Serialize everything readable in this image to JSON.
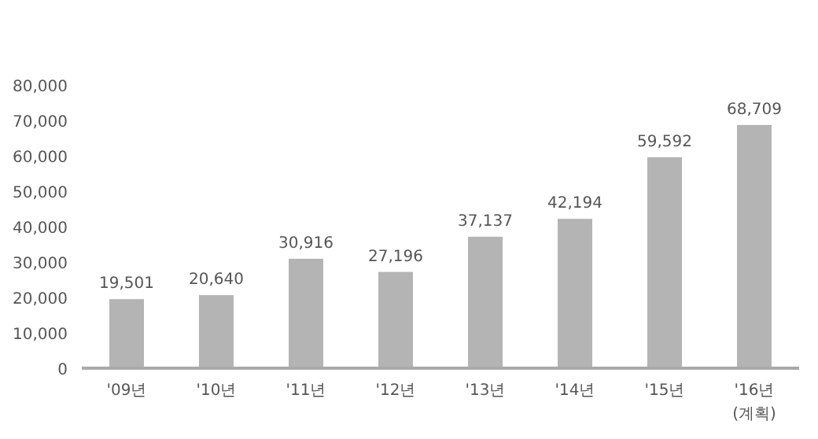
{
  "chart_data": {
    "type": "bar",
    "categories": [
      "'09년",
      "'10년",
      "'11년",
      "'12년",
      "'13년",
      "'14년",
      "'15년",
      "'16년\n(계획)"
    ],
    "values": [
      19501,
      20640,
      30916,
      27196,
      37137,
      42194,
      59592,
      68709
    ],
    "value_labels": [
      "19,501",
      "20,640",
      "30,916",
      "27,196",
      "37,137",
      "42,194",
      "59,592",
      "68,709"
    ],
    "color": "#b4b4b4",
    "ylim": [
      0,
      80000
    ],
    "yticks": [
      {
        "value": 0,
        "label": "0"
      },
      {
        "value": 10000,
        "label": "10,000"
      },
      {
        "value": 20000,
        "label": "20,000"
      },
      {
        "value": 30000,
        "label": "30,000"
      },
      {
        "value": 40000,
        "label": "40,000"
      },
      {
        "value": 50000,
        "label": "50,000"
      },
      {
        "value": 60000,
        "label": "60,000"
      },
      {
        "value": 70000,
        "label": "70,000"
      },
      {
        "value": 80000,
        "label": "80,000"
      }
    ],
    "grid": false
  }
}
